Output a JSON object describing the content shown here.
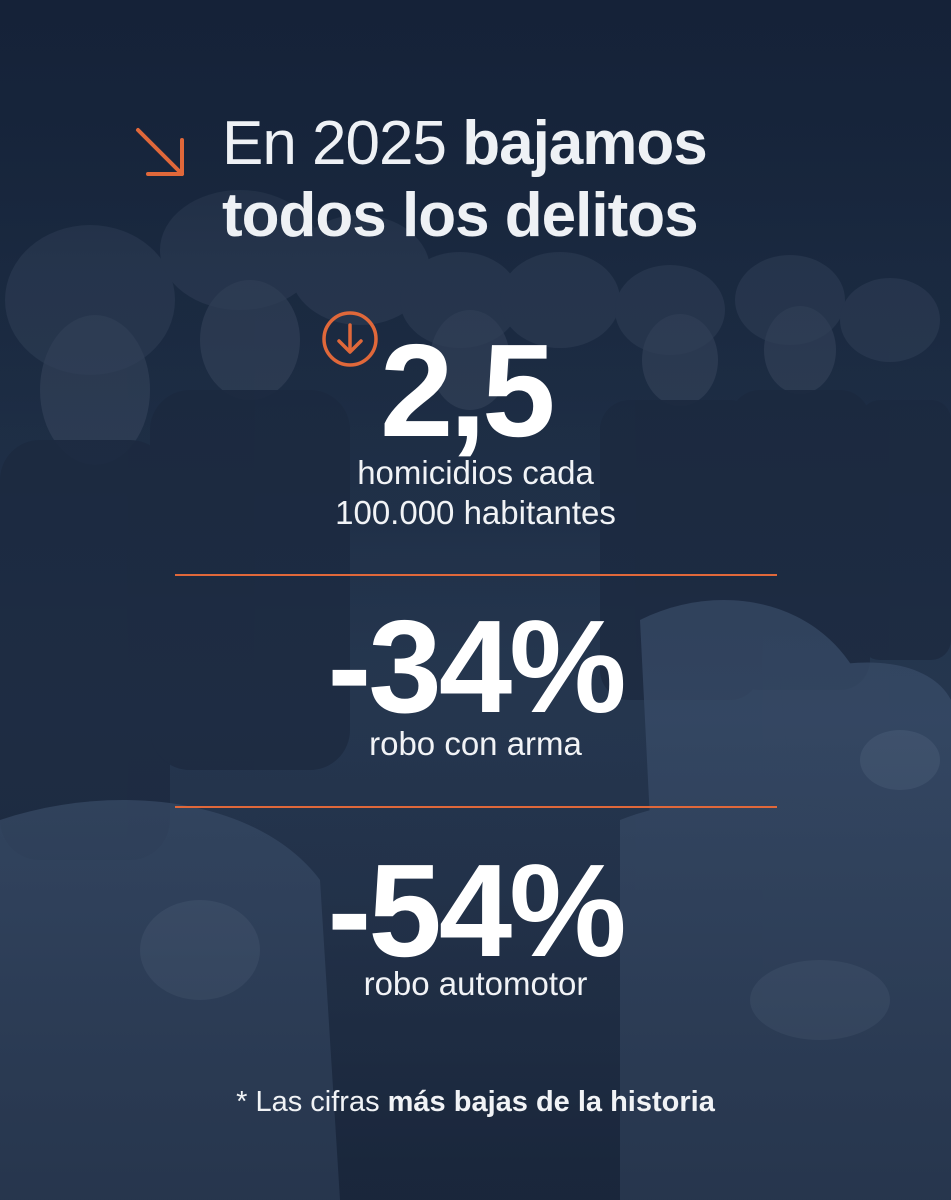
{
  "headline": {
    "light": "En 2025 ",
    "bold": "bajamos todos los delitos"
  },
  "accent_color": "#e0683a",
  "icons": {
    "headline_arrow": "arrow-down-right-icon",
    "stat_arrow": "circle-arrow-down-icon"
  },
  "stats": [
    {
      "value": "2,5",
      "label_line1": "homicidios cada",
      "label_line2": "100.000 habitantes"
    },
    {
      "value": "-34%",
      "label_line1": "robo con arma"
    },
    {
      "value": "-54%",
      "label_line1": "robo automotor"
    }
  ],
  "footnote": {
    "prefix": "* Las cifras ",
    "bold": "más bajas de la historia"
  }
}
